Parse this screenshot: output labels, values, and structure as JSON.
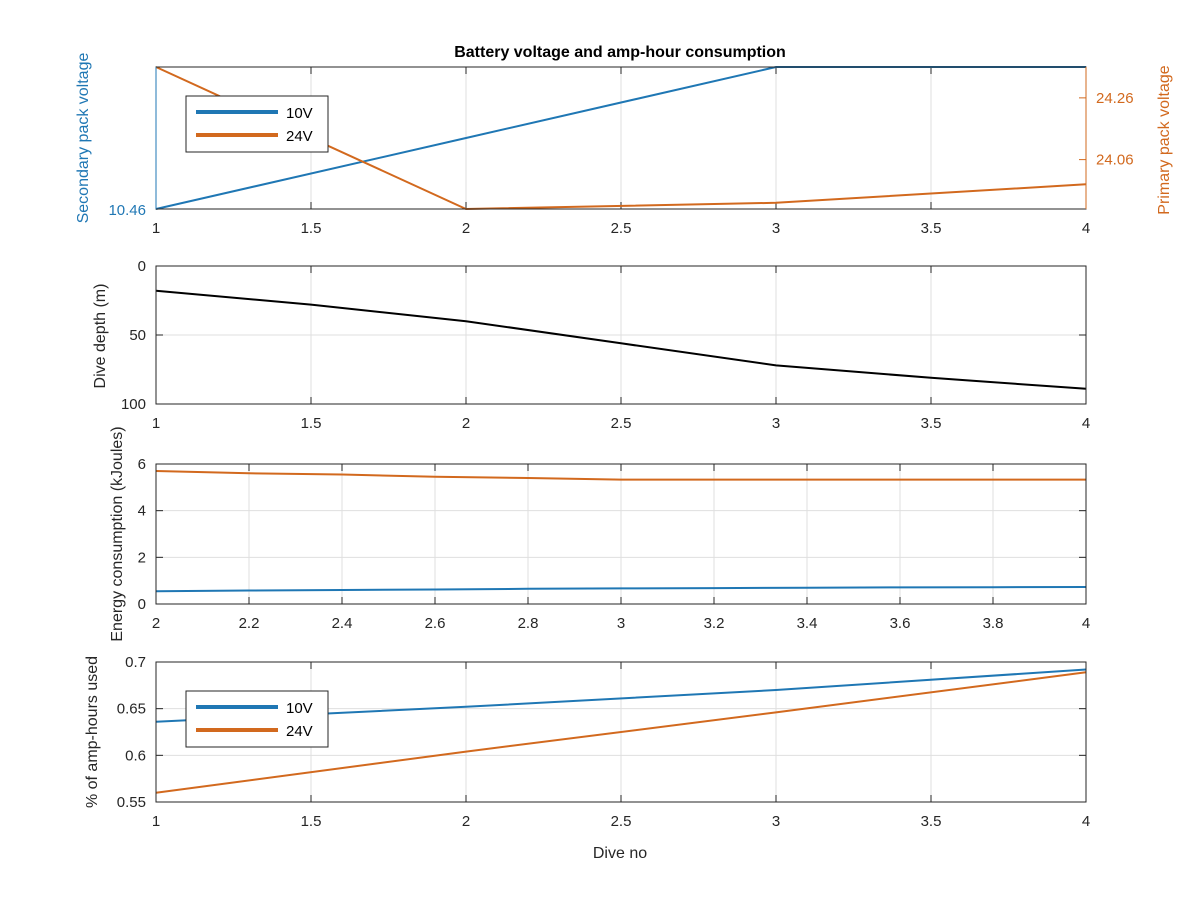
{
  "colors": {
    "v10": "#1f77b4",
    "v24": "#d2691e",
    "depth": "#000000",
    "axis": "#262626",
    "grid": "#dfdfdf"
  },
  "chart_data": [
    {
      "type": "line",
      "title": "Battery voltage and amp-hour consumption",
      "x": [
        1,
        2,
        3,
        4
      ],
      "xlim": [
        1,
        4
      ],
      "x_ticks": [
        "1",
        "1.5",
        "2",
        "2.5",
        "3",
        "3.5",
        "4"
      ],
      "left_axis": {
        "label": "Secondary pack voltage",
        "ticks": [
          "10.46"
        ],
        "ylim": [
          10.46,
          10.5
        ]
      },
      "right_axis": {
        "label": "Primary pack voltage",
        "ticks": [
          "24.06",
          "24.26"
        ],
        "ylim": [
          23.9,
          24.36
        ]
      },
      "series": [
        {
          "name": "10V",
          "axis": "left",
          "values": [
            10.46,
            10.48,
            10.5,
            10.5
          ]
        },
        {
          "name": "24V",
          "axis": "right",
          "values": [
            24.36,
            23.9,
            23.92,
            23.98
          ]
        }
      ],
      "legend": {
        "placement": "top-left",
        "entries": [
          "10V",
          "24V"
        ]
      },
      "grid": true
    },
    {
      "type": "line",
      "x": [
        1,
        1.5,
        2,
        2.5,
        3,
        3.5,
        4
      ],
      "values": [
        18,
        28,
        40,
        56,
        72,
        81,
        89
      ],
      "xlim": [
        1,
        4
      ],
      "ylim": [
        0,
        100
      ],
      "y_reversed": true,
      "x_ticks": [
        "1",
        "1.5",
        "2",
        "2.5",
        "3",
        "3.5",
        "4"
      ],
      "y_ticks": [
        "0",
        "50",
        "100"
      ],
      "ylabel": "Dive depth (m)",
      "grid": true
    },
    {
      "type": "line",
      "x": [
        2,
        2.2,
        2.4,
        2.6,
        2.8,
        3,
        3.2,
        3.4,
        3.6,
        3.8,
        4
      ],
      "xlim": [
        2,
        4
      ],
      "ylim": [
        0,
        6
      ],
      "x_ticks": [
        "2",
        "2.2",
        "2.4",
        "2.6",
        "2.8",
        "3",
        "3.2",
        "3.4",
        "3.6",
        "3.8",
        "4"
      ],
      "y_ticks": [
        "0",
        "2",
        "4",
        "6"
      ],
      "ylabel": "Energy consumption (kJoules)",
      "series": [
        {
          "key": "v10",
          "values": [
            0.55,
            0.58,
            0.6,
            0.62,
            0.65,
            0.67,
            0.68,
            0.7,
            0.71,
            0.72,
            0.73
          ]
        },
        {
          "key": "v24",
          "values": [
            5.7,
            5.6,
            5.55,
            5.45,
            5.4,
            5.33,
            5.33,
            5.33,
            5.33,
            5.33,
            5.33
          ]
        }
      ],
      "grid": true
    },
    {
      "type": "line",
      "x": [
        1,
        2,
        3,
        4
      ],
      "xlim": [
        1,
        4
      ],
      "ylim": [
        0.55,
        0.7
      ],
      "x_ticks": [
        "1",
        "1.5",
        "2",
        "2.5",
        "3",
        "3.5",
        "4"
      ],
      "y_ticks": [
        "0.55",
        "0.6",
        "0.65",
        "0.7"
      ],
      "xlabel": "Dive no",
      "ylabel": "% of amp-hours used",
      "series": [
        {
          "name": "10V",
          "values": [
            0.636,
            0.652,
            0.67,
            0.692
          ]
        },
        {
          "name": "24V",
          "values": [
            0.56,
            0.604,
            0.646,
            0.689
          ]
        }
      ],
      "legend": {
        "placement": "bottom-left",
        "entries": [
          "10V",
          "24V"
        ]
      },
      "grid": true
    }
  ]
}
